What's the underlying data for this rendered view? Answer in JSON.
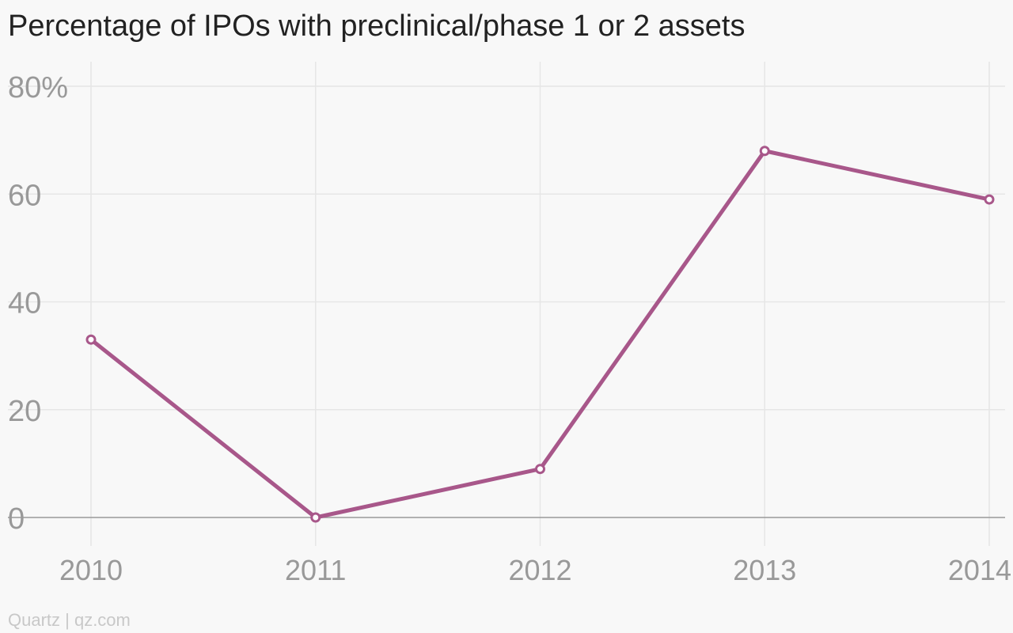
{
  "chart_data": {
    "type": "line",
    "title": "Percentage of IPOs with preclinical/phase 1 or 2 assets",
    "xlabel": "",
    "ylabel": "",
    "x": [
      "2010",
      "2011",
      "2012",
      "2013",
      "2014"
    ],
    "series": [
      {
        "values": [
          33,
          0,
          9,
          68,
          59
        ]
      }
    ],
    "ylim": [
      0,
      80
    ],
    "yticks": [
      0,
      20,
      40,
      60,
      80
    ],
    "ytick_labels": [
      "0",
      "20",
      "40",
      "60",
      "80%"
    ],
    "grid": true,
    "legend": "none"
  },
  "colors": {
    "line": "#a8578a",
    "marker_fill": "#ffffff",
    "grid": "#e6e6e6",
    "baseline": "#999999",
    "tick_text": "#999999",
    "title_text": "#222222",
    "source_text": "#c8c8c8"
  },
  "source": "Quartz | qz.com"
}
